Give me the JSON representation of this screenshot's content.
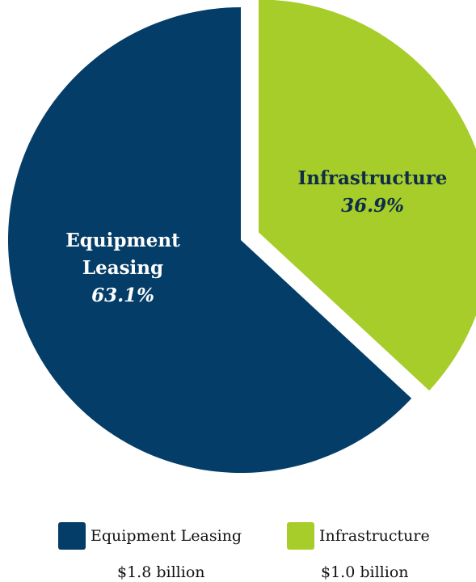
{
  "chart_data": {
    "type": "pie",
    "title": "",
    "slices": [
      {
        "label": "Equipment Leasing",
        "value": 63.1,
        "percent_label": "63.1%",
        "label_lines": [
          "Equipment",
          "Leasing"
        ],
        "amount": "$1.8 billion",
        "color": "#043d68"
      },
      {
        "label": "Infrastructure",
        "value": 36.9,
        "percent_label": "36.9%",
        "label_lines": [
          "Infrastructure"
        ],
        "amount": "$1.0 billion",
        "color": "#a6cd2a"
      }
    ],
    "legend_placement": "bottom"
  }
}
